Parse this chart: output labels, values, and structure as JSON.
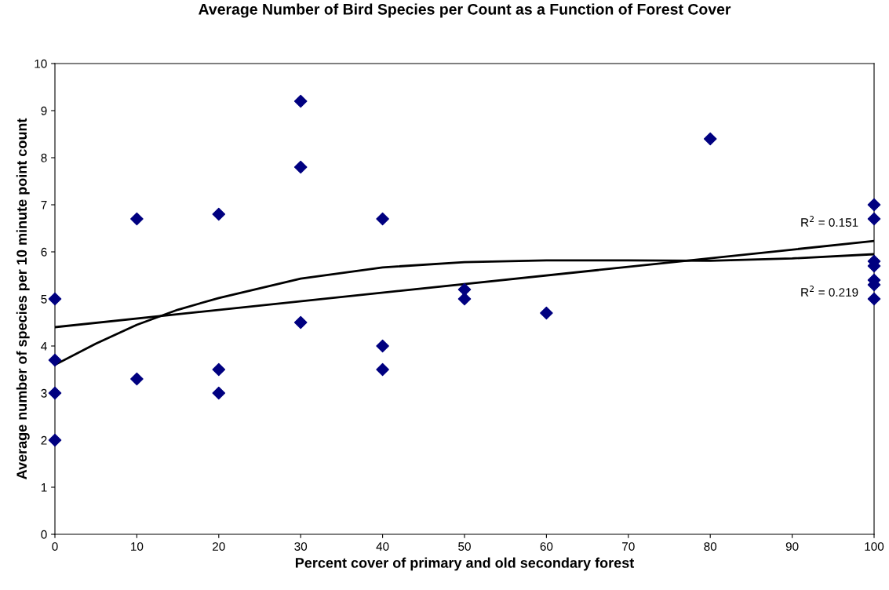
{
  "chart_data": {
    "type": "scatter",
    "title": "Average Number of Bird Species per Count as a Function of Forest Cover",
    "xlabel": "Percent cover of primary and old secondary forest",
    "ylabel": "Average number of species per 10 minute point count",
    "xlim": [
      0,
      100
    ],
    "xticks": [
      0,
      10,
      20,
      30,
      40,
      50,
      60,
      70,
      80,
      90,
      100
    ],
    "ylim": [
      0,
      10
    ],
    "yticks": [
      0,
      1,
      2,
      3,
      4,
      5,
      6,
      7,
      8,
      9,
      10
    ],
    "grid": false,
    "legend": false,
    "series": [
      {
        "marker": "diamond",
        "color": "#000080",
        "x": [
          0,
          0,
          0,
          0,
          10,
          10,
          20,
          20,
          20,
          30,
          30,
          30,
          40,
          40,
          40,
          50,
          50,
          60,
          80,
          100,
          100,
          100,
          100,
          100,
          100,
          100
        ],
        "values": [
          5,
          3.7,
          3,
          2,
          6.7,
          3.3,
          6.8,
          3.5,
          3,
          9.2,
          7.8,
          4.5,
          6.7,
          4,
          3.5,
          5.2,
          5,
          4.7,
          8.4,
          7,
          6.7,
          5.8,
          5.7,
          5.4,
          5.3,
          5
        ]
      },
      {
        "type": "line",
        "marker": "none",
        "line_style": "solid",
        "color": "#000000",
        "x": [
          0,
          100
        ],
        "values": [
          4.4,
          6.23
        ]
      },
      {
        "type": "line",
        "marker": "none",
        "line_style": "solid",
        "color": "#000000",
        "x": [
          0,
          5,
          10,
          15,
          20,
          30,
          40,
          50,
          60,
          70,
          80,
          90,
          100
        ],
        "values": [
          3.6,
          4.05,
          4.45,
          4.77,
          5.02,
          5.43,
          5.67,
          5.78,
          5.82,
          5.82,
          5.81,
          5.86,
          5.95
        ]
      }
    ],
    "annotations": [
      "R$^{2}$ = 0.151",
      "R$^{2}$ = 0.219"
    ]
  }
}
